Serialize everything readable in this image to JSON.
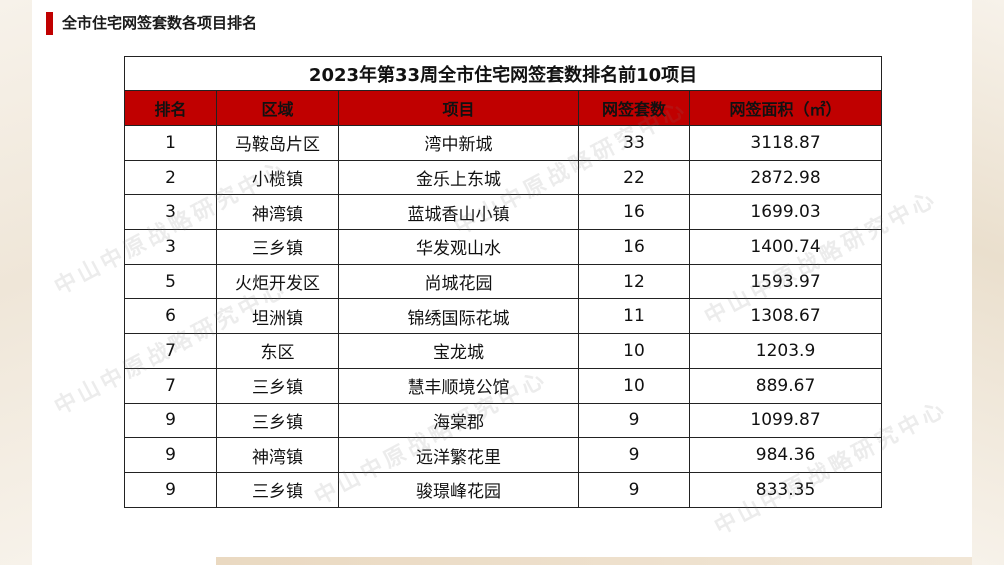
{
  "section": {
    "title": "全市住宅网签套数各项目排名"
  },
  "table": {
    "caption": "2023年第33周全市住宅网签套数排名前10项目",
    "headers": [
      "排名",
      "区域",
      "项目",
      "网签套数",
      "网签面积（㎡）"
    ],
    "rows": [
      [
        "1",
        "马鞍岛片区",
        "湾中新城",
        "33",
        "3118.87"
      ],
      [
        "2",
        "小榄镇",
        "金乐上东城",
        "22",
        "2872.98"
      ],
      [
        "3",
        "神湾镇",
        "蓝城香山小镇",
        "16",
        "1699.03"
      ],
      [
        "3",
        "三乡镇",
        "华发观山水",
        "16",
        "1400.74"
      ],
      [
        "5",
        "火炬开发区",
        "尚城花园",
        "12",
        "1593.97"
      ],
      [
        "6",
        "坦洲镇",
        "锦绣国际花城",
        "11",
        "1308.67"
      ],
      [
        "7",
        "东区",
        "宝龙城",
        "10",
        "1203.9"
      ],
      [
        "7",
        "三乡镇",
        "慧丰顺境公馆",
        "10",
        "889.67"
      ],
      [
        "9",
        "三乡镇",
        "海棠郡",
        "9",
        "1099.87"
      ],
      [
        "9",
        "神湾镇",
        "远洋繁花里",
        "9",
        "984.36"
      ],
      [
        "9",
        "三乡镇",
        "骏璟峰花园",
        "9",
        "833.35"
      ]
    ]
  },
  "watermark": "中山中原战略研究中心",
  "colors": {
    "accent": "#c00000",
    "header_text": "#ffffff"
  }
}
